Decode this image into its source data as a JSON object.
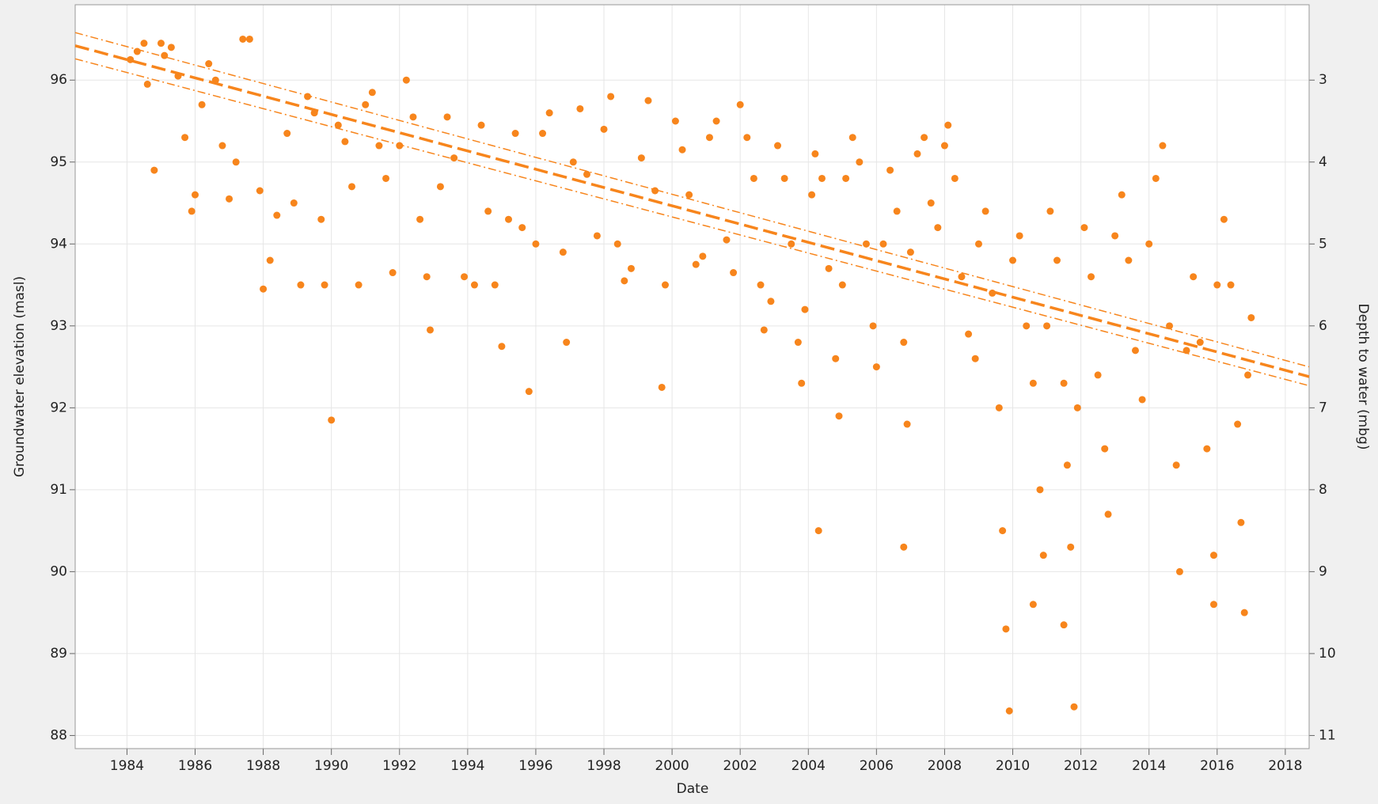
{
  "chart_data": {
    "type": "scatter",
    "x_label": "Date",
    "y_label": "Groundwater elevation (masl)",
    "y2_label": "Depth to water (mbg)",
    "color": "#f7851c",
    "grid": true,
    "xlim": [
      1982.48,
      2018.7
    ],
    "xticks": [
      1984,
      1986,
      1988,
      1990,
      1992,
      1994,
      1996,
      1998,
      2000,
      2002,
      2004,
      2006,
      2008,
      2010,
      2012,
      2014,
      2016,
      2018
    ],
    "ylim": [
      87.84,
      96.92
    ],
    "yticks": [
      88,
      89,
      90,
      91,
      92,
      93,
      94,
      95,
      96
    ],
    "y2lim": [
      11.16,
      2.08
    ],
    "y2ticks": [
      3,
      4,
      5,
      6,
      7,
      8,
      9,
      10,
      11
    ],
    "x": [
      1984.1,
      1984.3,
      1984.5,
      1984.6,
      1984.8,
      1985.0,
      1985.1,
      1985.3,
      1985.5,
      1985.7,
      1985.9,
      1986.0,
      1986.2,
      1986.4,
      1986.6,
      1986.8,
      1987.0,
      1987.2,
      1987.4,
      1987.6,
      1987.9,
      1988.0,
      1988.2,
      1988.4,
      1988.7,
      1988.9,
      1989.1,
      1989.3,
      1989.5,
      1989.7,
      1989.8,
      1990.0,
      1990.2,
      1990.4,
      1990.6,
      1990.8,
      1991.0,
      1991.2,
      1991.4,
      1991.6,
      1991.8,
      1992.0,
      1992.2,
      1992.4,
      1992.6,
      1992.8,
      1992.9,
      1993.2,
      1993.4,
      1993.6,
      1993.9,
      1994.2,
      1994.4,
      1994.6,
      1994.8,
      1995.0,
      1995.2,
      1995.4,
      1995.6,
      1995.8,
      1996.0,
      1996.2,
      1996.4,
      1996.8,
      1996.9,
      1997.1,
      1997.3,
      1997.5,
      1997.8,
      1998.0,
      1998.2,
      1998.4,
      1998.6,
      1998.8,
      1999.1,
      1999.3,
      1999.5,
      1999.7,
      1999.8,
      2000.1,
      2000.3,
      2000.5,
      2000.7,
      2000.9,
      2001.1,
      2001.3,
      2001.6,
      2001.8,
      2002.0,
      2002.2,
      2002.4,
      2002.6,
      2002.7,
      2002.9,
      2003.1,
      2003.3,
      2003.5,
      2003.7,
      2003.8,
      2003.9,
      2004.1,
      2004.2,
      2004.4,
      2004.6,
      2004.8,
      2004.9,
      2005.0,
      2005.1,
      2005.3,
      2005.5,
      2005.7,
      2005.9,
      2006.0,
      2006.2,
      2006.4,
      2006.6,
      2006.8,
      2006.9,
      2007.0,
      2007.2,
      2007.4,
      2007.6,
      2007.8,
      2008.0,
      2008.1,
      2008.3,
      2008.5,
      2008.7,
      2008.9,
      2009.0,
      2009.2,
      2009.4,
      2009.6,
      2009.7,
      2009.8,
      2009.9,
      2010.0,
      2010.2,
      2010.4,
      2010.6,
      2010.8,
      2010.9,
      2011.0,
      2011.1,
      2011.3,
      2011.5,
      2011.6,
      2011.7,
      2011.8,
      2011.9,
      2012.1,
      2012.3,
      2012.5,
      2012.7,
      2012.8,
      2013.0,
      2013.2,
      2013.4,
      2013.6,
      2013.8,
      2014.0,
      2014.2,
      2014.4,
      2014.6,
      2014.8,
      2014.9,
      2015.1,
      2015.3,
      2015.5,
      2015.7,
      2015.9,
      2016.0,
      2016.2,
      2016.4,
      2016.6,
      2016.7,
      2016.8,
      2016.9,
      2017.0,
      2004.3,
      2006.8,
      2010.6,
      2011.5,
      2015.9
    ],
    "values": [
      96.25,
      96.35,
      96.45,
      95.95,
      94.9,
      96.45,
      96.3,
      96.4,
      96.05,
      95.3,
      94.4,
      94.6,
      95.7,
      96.2,
      96.0,
      95.2,
      94.55,
      95.0,
      96.5,
      96.5,
      94.65,
      93.45,
      93.8,
      94.35,
      95.35,
      94.5,
      93.5,
      95.8,
      95.6,
      94.3,
      93.5,
      91.85,
      95.45,
      95.25,
      94.7,
      93.5,
      95.7,
      95.85,
      95.2,
      94.8,
      93.65,
      95.2,
      96.0,
      95.55,
      94.3,
      93.6,
      92.95,
      94.7,
      95.55,
      95.05,
      93.6,
      93.5,
      95.45,
      94.4,
      93.5,
      92.75,
      94.3,
      95.35,
      94.2,
      92.2,
      94.0,
      95.35,
      95.6,
      93.9,
      92.8,
      95.0,
      95.65,
      94.85,
      94.1,
      95.4,
      95.8,
      94.0,
      93.55,
      93.7,
      95.05,
      95.75,
      94.65,
      92.25,
      93.5,
      95.5,
      95.15,
      94.6,
      93.75,
      93.85,
      95.3,
      95.5,
      94.05,
      93.65,
      95.7,
      95.3,
      94.8,
      93.5,
      92.95,
      93.3,
      95.2,
      94.8,
      94.0,
      92.8,
      92.3,
      93.2,
      94.6,
      95.1,
      94.8,
      93.7,
      92.6,
      91.9,
      93.5,
      94.8,
      95.3,
      95.0,
      94.0,
      93.0,
      92.5,
      94.0,
      94.9,
      94.4,
      92.8,
      91.8,
      93.9,
      95.1,
      95.3,
      94.5,
      94.2,
      95.2,
      95.45,
      94.8,
      93.6,
      92.9,
      92.6,
      94.0,
      94.4,
      93.4,
      92.0,
      90.5,
      89.3,
      88.3,
      93.8,
      94.1,
      93.0,
      92.3,
      91.0,
      90.2,
      93.0,
      94.4,
      93.8,
      92.3,
      91.3,
      90.3,
      88.35,
      92.0,
      94.2,
      93.6,
      92.4,
      91.5,
      90.7,
      94.1,
      94.6,
      93.8,
      92.7,
      92.1,
      94.0,
      94.8,
      95.2,
      93.0,
      91.3,
      90.0,
      92.7,
      93.6,
      92.8,
      91.5,
      90.2,
      93.5,
      94.3,
      93.5,
      91.8,
      90.6,
      89.5,
      92.4,
      93.1,
      90.5,
      90.3,
      89.6,
      89.35,
      89.6
    ],
    "lines": [
      {
        "style": "thick-dashed",
        "x": [
          1982.48,
          2018.7
        ],
        "values": [
          96.42,
          92.38
        ]
      },
      {
        "style": "thin-dashed",
        "x": [
          1982.48,
          2018.7
        ],
        "values": [
          96.58,
          92.5
        ]
      },
      {
        "style": "thin-dashed",
        "x": [
          1982.48,
          2018.7
        ],
        "values": [
          96.26,
          92.27
        ]
      }
    ]
  }
}
